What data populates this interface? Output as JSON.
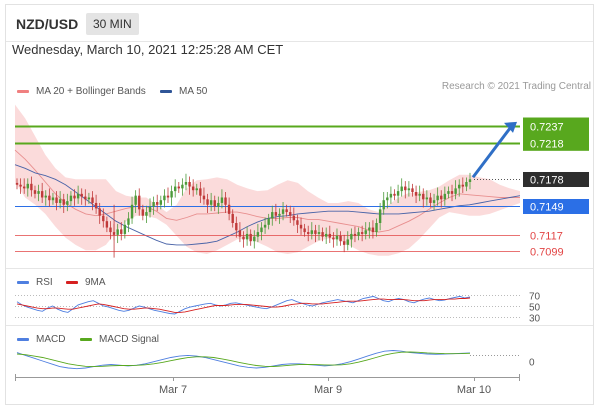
{
  "header": {
    "pair": "NZD/USD",
    "timeframe": "30 MIN"
  },
  "date_line": "Wednesday, March 10, 2021 12:25:28 AM CET",
  "legend": {
    "bollinger": "MA 20 + Bollinger Bands",
    "ma50": "MA 50",
    "credit": "Research © 2021 Trading Central",
    "rsi": "RSI",
    "rsi_ma": "9MA",
    "macd": "MACD",
    "macd_signal": "MACD Signal"
  },
  "colors": {
    "bollinger": "#f08080",
    "ma50": "#2f5597",
    "resistance": "#58a81e",
    "support": "#2b6fe6",
    "lower_levels": "#e24444",
    "candle_up": "#4c9a3a",
    "candle_down": "#c03a3a",
    "current": "#333333",
    "arrow": "#2f6fc6"
  },
  "chart_data": {
    "type": "candlestick",
    "x_ticks": [
      "Mar 7",
      "Mar 9",
      "Mar 10"
    ],
    "price_levels": [
      {
        "label": "0.7237",
        "value": 0.7237,
        "kind": "resistance"
      },
      {
        "label": "0.7218",
        "value": 0.7218,
        "kind": "resistance"
      },
      {
        "label": "0.7178",
        "value": 0.7178,
        "kind": "current"
      },
      {
        "label": "0.7149",
        "value": 0.7149,
        "kind": "pivot"
      },
      {
        "label": "0.7117",
        "value": 0.7117,
        "kind": "support"
      },
      {
        "label": "0.7099",
        "value": 0.7099,
        "kind": "support"
      }
    ],
    "ylim": [
      0.7085,
      0.7265
    ],
    "close": [
      0.7172,
      0.717,
      0.7168,
      0.7173,
      0.7166,
      0.7162,
      0.7165,
      0.7158,
      0.716,
      0.7155,
      0.7158,
      0.7152,
      0.7156,
      0.715,
      0.7154,
      0.716,
      0.7157,
      0.7162,
      0.7159,
      0.7156,
      0.7158,
      0.7152,
      0.7146,
      0.7138,
      0.7132,
      0.7125,
      0.712,
      0.7117,
      0.7123,
      0.7118,
      0.7128,
      0.7135,
      0.715,
      0.716,
      0.7145,
      0.7138,
      0.7142,
      0.7148,
      0.7153,
      0.715,
      0.7155,
      0.716,
      0.7158,
      0.7165,
      0.717,
      0.7168,
      0.7172,
      0.7175,
      0.717,
      0.7166,
      0.7168,
      0.716,
      0.7156,
      0.715,
      0.7155,
      0.7148,
      0.7152,
      0.7158,
      0.715,
      0.714,
      0.713,
      0.7122,
      0.7115,
      0.7112,
      0.7118,
      0.711,
      0.7115,
      0.712,
      0.7125,
      0.7128,
      0.7135,
      0.7142,
      0.7138,
      0.714,
      0.7145,
      0.7142,
      0.7138,
      0.7133,
      0.7128,
      0.7124,
      0.712,
      0.7118,
      0.7122,
      0.7118,
      0.712,
      0.7115,
      0.7118,
      0.7114,
      0.7112,
      0.7116,
      0.711,
      0.7106,
      0.7112,
      0.7118,
      0.7116,
      0.712,
      0.7118,
      0.7122,
      0.7125,
      0.712,
      0.713,
      0.7145,
      0.7155,
      0.7158,
      0.7162,
      0.716,
      0.7165,
      0.717,
      0.7166,
      0.7168,
      0.7164,
      0.716,
      0.7162,
      0.7156,
      0.7158,
      0.7152,
      0.7155,
      0.716,
      0.7156,
      0.7162,
      0.7165,
      0.7162,
      0.7168,
      0.7172,
      0.717,
      0.7175,
      0.7178
    ],
    "bb_upper": [
      0.726,
      0.7245,
      0.7225,
      0.7205,
      0.719,
      0.718,
      0.7178,
      0.7178,
      0.7178,
      0.7178,
      0.7165,
      0.716,
      0.7158,
      0.7158,
      0.715,
      0.7142,
      0.715,
      0.7168,
      0.7177,
      0.7178,
      0.718,
      0.7178,
      0.7172,
      0.7168,
      0.7165,
      0.7166,
      0.7172,
      0.7177,
      0.7174,
      0.7165,
      0.7158,
      0.7152,
      0.7152,
      0.7154,
      0.7152,
      0.7145,
      0.7142,
      0.715,
      0.7158,
      0.7163,
      0.7164,
      0.7166,
      0.717,
      0.7177,
      0.7183,
      0.7183,
      0.718,
      0.7178,
      0.7172,
      0.7168,
      0.7165
    ],
    "bb_lower": [
      0.7175,
      0.7158,
      0.715,
      0.714,
      0.7126,
      0.7114,
      0.7106,
      0.71,
      0.71,
      0.7106,
      0.712,
      0.7132,
      0.7138,
      0.7138,
      0.7135,
      0.7128,
      0.7116,
      0.7104,
      0.7098,
      0.7096,
      0.71,
      0.7106,
      0.7112,
      0.7113,
      0.7109,
      0.7104,
      0.7098,
      0.7096,
      0.7098,
      0.7104,
      0.711,
      0.7113,
      0.7112,
      0.7106,
      0.71,
      0.7096,
      0.7094,
      0.7094,
      0.7097,
      0.7102,
      0.7112,
      0.7124,
      0.7136,
      0.7142,
      0.714,
      0.7138,
      0.7138,
      0.714,
      0.7144,
      0.7148,
      0.7152
    ],
    "ma20": [
      0.721,
      0.72,
      0.7188,
      0.7175,
      0.7162,
      0.7152,
      0.7145,
      0.714,
      0.7138,
      0.714,
      0.7143,
      0.7146,
      0.7148,
      0.7148,
      0.7143,
      0.7135,
      0.7133,
      0.7136,
      0.714,
      0.714,
      0.7141,
      0.7142,
      0.7142,
      0.714,
      0.7137,
      0.7135,
      0.7135,
      0.7136,
      0.7136,
      0.7134,
      0.7134,
      0.7132,
      0.713,
      0.7128,
      0.7126,
      0.7122,
      0.712,
      0.7122,
      0.7127,
      0.7132,
      0.7138,
      0.7145,
      0.7152,
      0.7158,
      0.7162,
      0.7161,
      0.716,
      0.7159,
      0.7158,
      0.7158,
      0.7158
    ],
    "ma50": [
      0.7194,
      0.719,
      0.7185,
      0.7182,
      0.7178,
      0.7172,
      0.7164,
      0.7156,
      0.7148,
      0.714,
      0.7132,
      0.7126,
      0.7121,
      0.7116,
      0.7111,
      0.7107,
      0.7106,
      0.7106,
      0.7107,
      0.7108,
      0.711,
      0.7115,
      0.712,
      0.7126,
      0.7131,
      0.7135,
      0.7137,
      0.7138,
      0.714,
      0.7141,
      0.7142,
      0.7143,
      0.7143,
      0.7143,
      0.7142,
      0.7141,
      0.714,
      0.714,
      0.714,
      0.7141,
      0.7142,
      0.7143,
      0.7145,
      0.7147,
      0.7149,
      0.715,
      0.7152,
      0.7154,
      0.7156,
      0.7158,
      0.716
    ],
    "rsi_ticks": [
      "70",
      "50",
      "30"
    ],
    "rsi": [
      58,
      52,
      48,
      45,
      42,
      40,
      46,
      50,
      44,
      40,
      38,
      45,
      52,
      55,
      58,
      60,
      55,
      50,
      48,
      45,
      42,
      40,
      42,
      46,
      50,
      48,
      45,
      42,
      40,
      38,
      36,
      35,
      40,
      45,
      48,
      50,
      52,
      54,
      55,
      52,
      50,
      52,
      55,
      56,
      54,
      52,
      50,
      48,
      46,
      45,
      48,
      52,
      56,
      60,
      62,
      58,
      55,
      52,
      50,
      53,
      56,
      58,
      60,
      62,
      60,
      58,
      56,
      60,
      64,
      66,
      68,
      64,
      60,
      58,
      62,
      64,
      62,
      58,
      56,
      60,
      63,
      65,
      62,
      60,
      61,
      64,
      66,
      68,
      65,
      67
    ],
    "rsi_ma": [
      54,
      52,
      50,
      48,
      46,
      45,
      45,
      46,
      46,
      45,
      44,
      44,
      46,
      48,
      50,
      52,
      54,
      53,
      51,
      49,
      47,
      45,
      44,
      44,
      45,
      46,
      46,
      45,
      44,
      42,
      40,
      38,
      38,
      39,
      41,
      43,
      45,
      47,
      49,
      51,
      51,
      51,
      52,
      53,
      53,
      53,
      52,
      51,
      50,
      49,
      48,
      48,
      49,
      51,
      53,
      54,
      55,
      55,
      54,
      54,
      54,
      55,
      56,
      57,
      58,
      59,
      59,
      59,
      60,
      61,
      62,
      63,
      63,
      62,
      62,
      62,
      62,
      61,
      60,
      60,
      60,
      61,
      62,
      62,
      62,
      63,
      63,
      64,
      64,
      65
    ],
    "macd_ticks": [
      "0"
    ],
    "macd": [
      0.6,
      0.4,
      0.2,
      0.0,
      -0.2,
      -0.4,
      -0.5,
      -0.55,
      -0.5,
      -0.4,
      -0.3,
      -0.25,
      -0.3,
      -0.35,
      -0.3,
      -0.2,
      -0.05,
      0.1,
      0.25,
      0.35,
      0.4,
      0.35,
      0.25,
      0.1,
      -0.05,
      -0.2,
      -0.35,
      -0.45,
      -0.5,
      -0.45,
      -0.35,
      -0.25,
      -0.2,
      -0.2,
      -0.25,
      -0.3,
      -0.35,
      -0.3,
      -0.2,
      -0.05,
      0.15,
      0.35,
      0.55,
      0.7,
      0.75,
      0.7,
      0.6,
      0.55,
      0.5,
      0.48,
      0.5,
      0.52,
      0.55,
      0.58
    ],
    "macd_signal": [
      0.5,
      0.45,
      0.35,
      0.25,
      0.1,
      -0.05,
      -0.2,
      -0.3,
      -0.38,
      -0.4,
      -0.38,
      -0.34,
      -0.32,
      -0.32,
      -0.31,
      -0.27,
      -0.2,
      -0.1,
      0.02,
      0.14,
      0.24,
      0.3,
      0.3,
      0.25,
      0.15,
      0.03,
      -0.1,
      -0.22,
      -0.32,
      -0.38,
      -0.39,
      -0.35,
      -0.3,
      -0.26,
      -0.25,
      -0.26,
      -0.28,
      -0.29,
      -0.27,
      -0.2,
      -0.08,
      0.08,
      0.25,
      0.42,
      0.55,
      0.63,
      0.64,
      0.62,
      0.58,
      0.55,
      0.53,
      0.52,
      0.53,
      0.55
    ]
  }
}
